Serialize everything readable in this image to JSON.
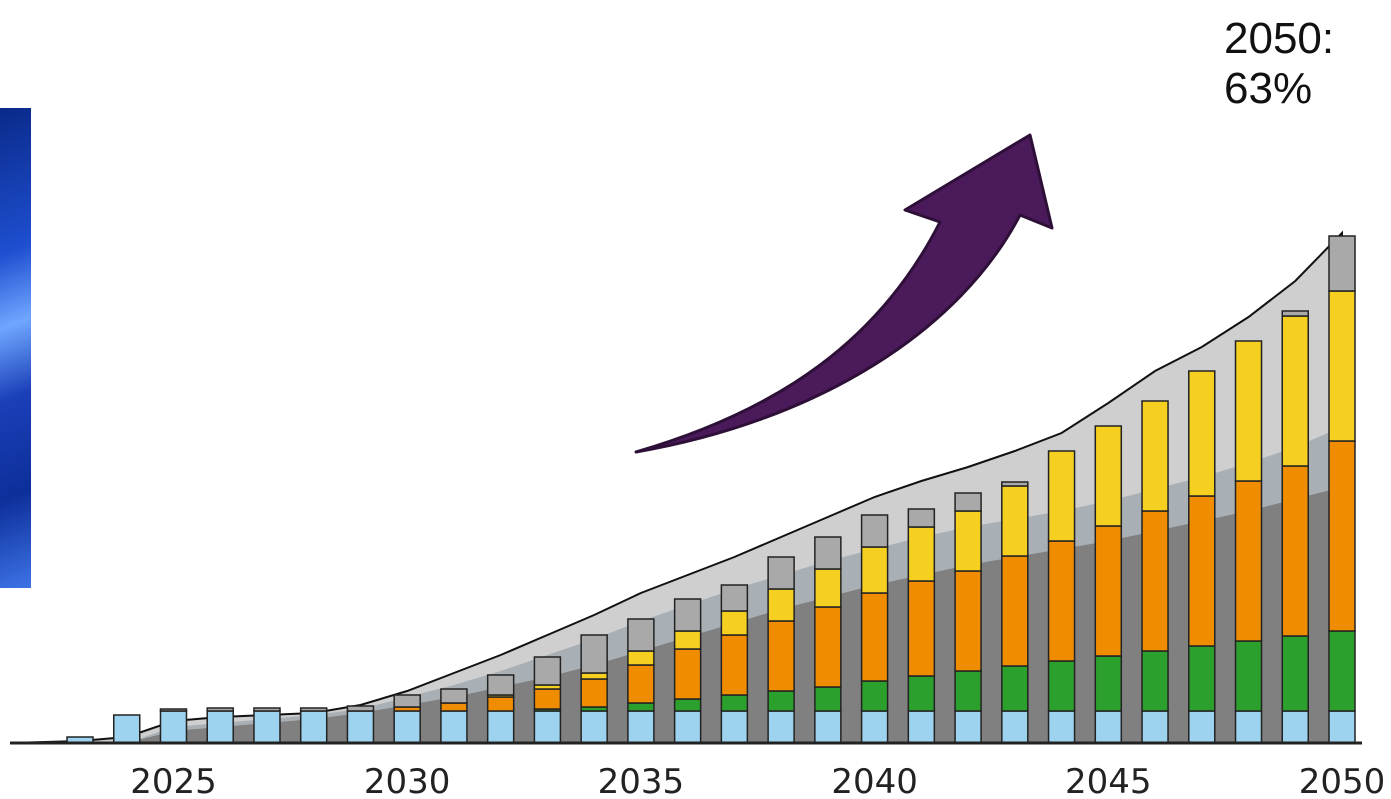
{
  "callout": {
    "year_label": "2050:",
    "value_label": "63%"
  },
  "arrow_color": "#4b1a5a",
  "chart_data": {
    "type": "bar",
    "stacked": true,
    "title": "",
    "xlabel": "",
    "ylabel": "",
    "x": [
      2023,
      2024,
      2025,
      2026,
      2027,
      2028,
      2029,
      2030,
      2031,
      2032,
      2033,
      2034,
      2035,
      2036,
      2037,
      2038,
      2039,
      2040,
      2041,
      2042,
      2043,
      2044,
      2045,
      2046,
      2047,
      2048,
      2049,
      2050
    ],
    "x_tick_labels": [
      "2025",
      "2030",
      "2035",
      "2040",
      "2045",
      "2050"
    ],
    "x_tick_values": [
      2025,
      2030,
      2035,
      2040,
      2045,
      2050
    ],
    "ylim": [
      0,
      540
    ],
    "series": [
      {
        "color": "#9dd3ee",
        "values": [
          6,
          28,
          32,
          32,
          32,
          32,
          32,
          32,
          32,
          32,
          32,
          32,
          32,
          32,
          32,
          32,
          32,
          32,
          32,
          32,
          32,
          32,
          32,
          32,
          32,
          32,
          32,
          32
        ]
      },
      {
        "color": "#2ca02c",
        "values": [
          0,
          0,
          0,
          0,
          0,
          0,
          0,
          0,
          0,
          0,
          2,
          4,
          8,
          12,
          16,
          20,
          24,
          30,
          35,
          40,
          45,
          50,
          55,
          60,
          65,
          70,
          75,
          80
        ]
      },
      {
        "color": "#f08c00",
        "values": [
          0,
          0,
          0,
          0,
          0,
          0,
          0,
          4,
          8,
          14,
          20,
          28,
          38,
          50,
          60,
          70,
          80,
          88,
          95,
          100,
          110,
          120,
          130,
          140,
          150,
          160,
          170,
          190
        ]
      },
      {
        "color": "#f5d020",
        "values": [
          0,
          0,
          0,
          0,
          0,
          0,
          0,
          0,
          0,
          2,
          4,
          6,
          14,
          18,
          24,
          32,
          38,
          46,
          54,
          60,
          70,
          90,
          100,
          110,
          125,
          140,
          150,
          150
        ]
      },
      {
        "color": "#a9a9a9",
        "values": [
          0,
          0,
          2,
          3,
          3,
          3,
          5,
          12,
          14,
          20,
          28,
          38,
          32,
          32,
          26,
          32,
          32,
          32,
          18,
          18,
          4,
          0,
          0,
          0,
          0,
          0,
          5,
          55
        ]
      }
    ],
    "area_layers": [
      {
        "color": "#808080",
        "values": [
          0,
          0,
          12,
          16,
          20,
          24,
          30,
          38,
          46,
          56,
          66,
          78,
          92,
          106,
          120,
          134,
          146,
          158,
          168,
          178,
          186,
          194,
          202,
          212,
          222,
          232,
          244,
          256
        ]
      },
      {
        "color": "#a9b0b5",
        "values": [
          0,
          0,
          16,
          20,
          24,
          28,
          34,
          46,
          58,
          72,
          88,
          104,
          122,
          138,
          154,
          168,
          182,
          194,
          206,
          216,
          224,
          232,
          242,
          254,
          266,
          280,
          296,
          316
        ]
      },
      {
        "color": "#cfcfcf",
        "values": [
          2,
          6,
          22,
          26,
          28,
          30,
          38,
          52,
          70,
          88,
          108,
          128,
          150,
          168,
          186,
          206,
          226,
          246,
          262,
          276,
          292,
          310,
          340,
          372,
          396,
          426,
          462,
          510
        ]
      }
    ]
  }
}
